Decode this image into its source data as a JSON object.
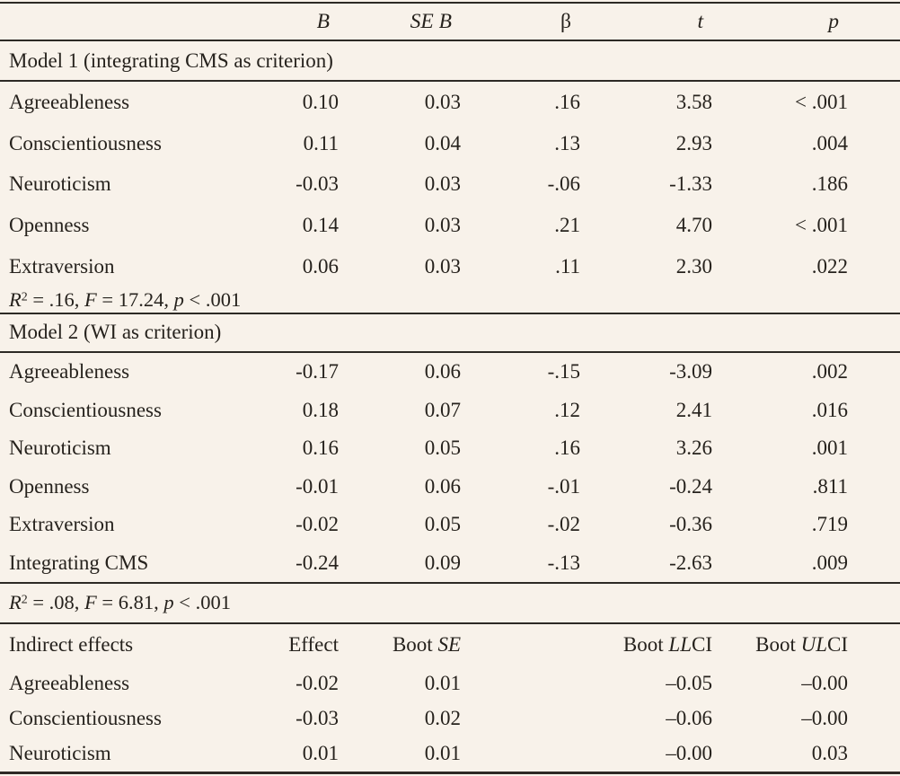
{
  "page": {
    "background": "#f8f2ea",
    "text_color": "#26221d",
    "rule_color": "#2d2a25"
  },
  "table": {
    "column_header_row": {
      "cells": [
        [],
        [
          [
            "B",
            "i"
          ]
        ],
        [
          [
            "SE B",
            "i"
          ]
        ],
        [
          [
            "β",
            ""
          ]
        ],
        [
          [
            "t",
            "i"
          ]
        ],
        [
          [
            "p",
            "i"
          ]
        ]
      ]
    },
    "sections": [
      {
        "title": "Model 1 (integrating CMS as criterion)",
        "rows": [
          [
            "Agreeableness",
            "0.10",
            "0.03",
            ".16",
            "3.58",
            "< .001"
          ],
          [
            "Conscientiousness",
            "0.11",
            "0.04",
            ".13",
            "2.93",
            ".004"
          ],
          [
            "Neuroticism",
            "-0.03",
            "0.03",
            "-.06",
            "-1.33",
            ".186"
          ],
          [
            "Openness",
            "0.14",
            "0.03",
            ".21",
            "4.70",
            "< .001"
          ],
          [
            "Extraversion",
            "0.06",
            "0.03",
            ".11",
            "2.30",
            ".022"
          ]
        ],
        "summary": [
          [
            "R",
            "i"
          ],
          [
            "2",
            "sup"
          ],
          [
            " = .16, ",
            ""
          ],
          [
            "F",
            "i"
          ],
          [
            " = 17.24, ",
            ""
          ],
          [
            "p",
            "i"
          ],
          [
            " < .001",
            ""
          ]
        ]
      },
      {
        "title": "Model 2 (WI as criterion)",
        "rows": [
          [
            "Agreeableness",
            "-0.17",
            "0.06",
            "-.15",
            "-3.09",
            ".002"
          ],
          [
            "Conscientiousness",
            "0.18",
            "0.07",
            ".12",
            "2.41",
            ".016"
          ],
          [
            "Neuroticism",
            "0.16",
            "0.05",
            ".16",
            "3.26",
            ".001"
          ],
          [
            "Openness",
            "-0.01",
            "0.06",
            "-.01",
            "-0.24",
            ".811"
          ],
          [
            "Extraversion",
            "-0.02",
            "0.05",
            "-.02",
            "-0.36",
            ".719"
          ],
          [
            "Integrating CMS",
            "-0.24",
            "0.09",
            "-.13",
            "-2.63",
            ".009"
          ]
        ],
        "summary": [
          [
            "R",
            "i"
          ],
          [
            "2",
            "sup"
          ],
          [
            " = .08, ",
            ""
          ],
          [
            "F",
            "i"
          ],
          [
            " = 6.81, ",
            ""
          ],
          [
            "p",
            "i"
          ],
          [
            " < .001",
            ""
          ]
        ]
      }
    ],
    "indirect": {
      "header_cells": [
        [
          [
            "Indirect effects",
            ""
          ]
        ],
        [
          [
            "Effect",
            ""
          ]
        ],
        [
          [
            "Boot ",
            ""
          ],
          [
            "SE",
            "i"
          ]
        ],
        [],
        [
          [
            "Boot ",
            ""
          ],
          [
            "LL",
            "i"
          ],
          [
            "CI",
            ""
          ]
        ],
        [
          [
            "Boot ",
            ""
          ],
          [
            "UL",
            "i"
          ],
          [
            "CI",
            ""
          ]
        ]
      ],
      "rows": [
        [
          "Agreeableness",
          "-0.02",
          "0.01",
          "",
          "–0.05",
          "–0.00"
        ],
        [
          "Conscientiousness",
          "-0.03",
          "0.02",
          "",
          "–0.06",
          "–0.00"
        ],
        [
          "Neuroticism",
          "0.01",
          "0.01",
          "",
          "–0.00",
          "0.03"
        ]
      ]
    }
  }
}
